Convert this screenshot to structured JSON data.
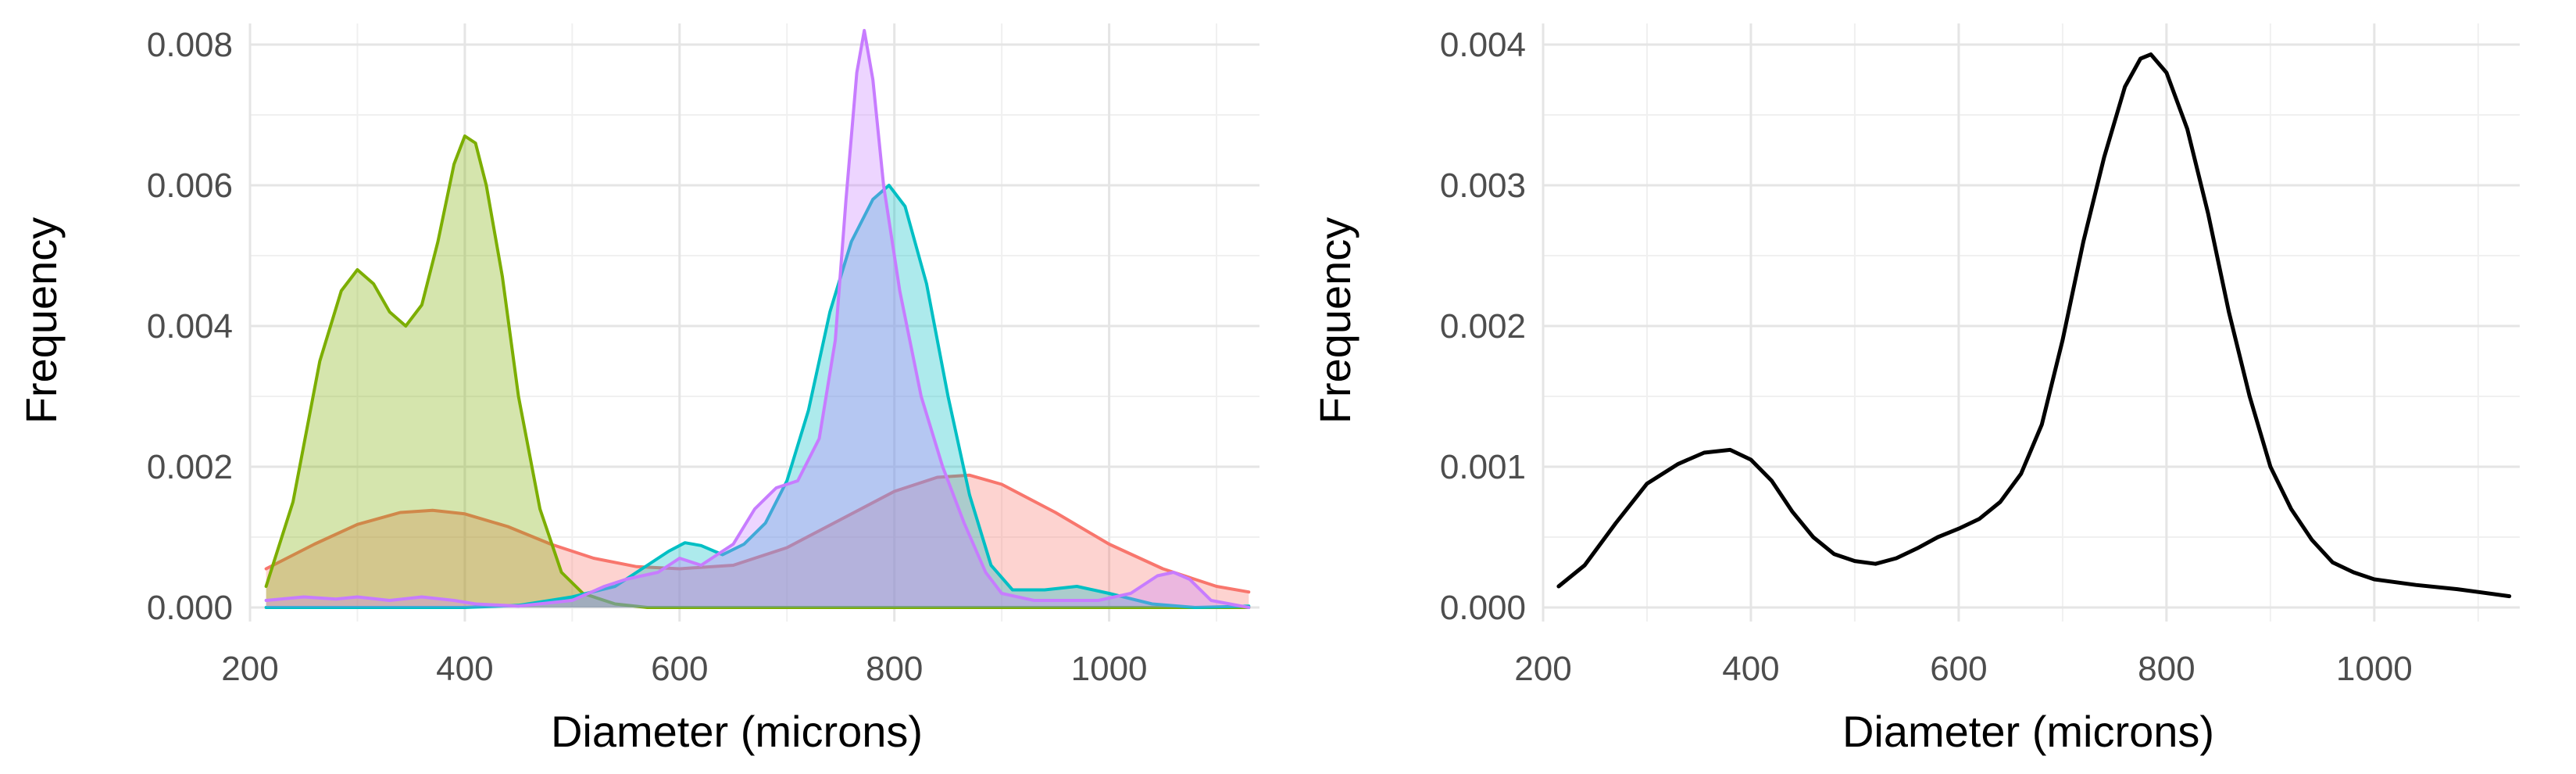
{
  "chart_data": [
    {
      "type": "area",
      "xlabel": "Diameter (microns)",
      "ylabel": "Frequency",
      "xlim": [
        200,
        1140
      ],
      "ylim": [
        -0.0002,
        0.0083
      ],
      "x_ticks": [
        200,
        400,
        600,
        800,
        1000
      ],
      "x_tick_labels": [
        "200",
        "400",
        "600",
        "800",
        "1000"
      ],
      "y_ticks": [
        0,
        0.002,
        0.004,
        0.006,
        0.008
      ],
      "y_tick_labels": [
        "0.000",
        "0.002",
        "0.004",
        "0.006",
        "0.008"
      ],
      "grid": true,
      "legend": "none",
      "series": [
        {
          "color": "#F8766D",
          "x": [
            215,
            260,
            300,
            340,
            370,
            400,
            440,
            480,
            520,
            560,
            600,
            650,
            700,
            750,
            800,
            840,
            870,
            900,
            950,
            1000,
            1050,
            1100,
            1130
          ],
          "y": [
            0.00055,
            0.0009,
            0.00118,
            0.00135,
            0.00138,
            0.00133,
            0.00115,
            0.0009,
            0.0007,
            0.00058,
            0.00055,
            0.0006,
            0.00085,
            0.00125,
            0.00165,
            0.00185,
            0.00188,
            0.00175,
            0.00135,
            0.0009,
            0.00055,
            0.0003,
            0.00022
          ]
        },
        {
          "color": "#7CAE00",
          "x": [
            215,
            240,
            265,
            285,
            300,
            315,
            330,
            345,
            360,
            375,
            390,
            400,
            410,
            420,
            435,
            450,
            470,
            490,
            510,
            540,
            570,
            620,
            700,
            800,
            900,
            1000,
            1130
          ],
          "y": [
            0.0003,
            0.0015,
            0.0035,
            0.0045,
            0.0048,
            0.0046,
            0.0042,
            0.004,
            0.0043,
            0.0052,
            0.0063,
            0.0067,
            0.0066,
            0.006,
            0.0047,
            0.003,
            0.0014,
            0.0005,
            0.0002,
            5e-05,
            0.0,
            0.0,
            0.0,
            0.0,
            0.0,
            0.0,
            0.0
          ]
        },
        {
          "color": "#00BFC4",
          "x": [
            215,
            300,
            400,
            450,
            500,
            540,
            570,
            590,
            605,
            620,
            640,
            660,
            680,
            700,
            720,
            740,
            760,
            780,
            795,
            810,
            830,
            850,
            870,
            890,
            910,
            940,
            970,
            1000,
            1040,
            1080,
            1130
          ],
          "y": [
            0.0,
            0.0,
            0.0,
            3e-05,
            0.00015,
            0.0003,
            0.0006,
            0.0008,
            0.00092,
            0.00088,
            0.00075,
            0.0009,
            0.0012,
            0.0018,
            0.0028,
            0.0042,
            0.0052,
            0.0058,
            0.006,
            0.0057,
            0.0046,
            0.003,
            0.0016,
            0.0006,
            0.00025,
            0.00025,
            0.0003,
            0.0002,
            5e-05,
            0.0,
            2e-05
          ]
        },
        {
          "color": "#C77CFF",
          "x": [
            215,
            250,
            280,
            300,
            330,
            360,
            390,
            410,
            450,
            500,
            530,
            550,
            580,
            600,
            620,
            650,
            670,
            690,
            710,
            730,
            745,
            755,
            765,
            772,
            780,
            790,
            805,
            825,
            845,
            865,
            885,
            900,
            930,
            960,
            990,
            1020,
            1045,
            1060,
            1075,
            1095,
            1130
          ],
          "y": [
            0.0001,
            0.00015,
            0.00012,
            0.00015,
            0.0001,
            0.00015,
            0.0001,
            5e-05,
            2e-05,
            0.0001,
            0.0003,
            0.0004,
            0.0005,
            0.0007,
            0.0006,
            0.0009,
            0.0014,
            0.0017,
            0.0018,
            0.0024,
            0.0038,
            0.0058,
            0.0076,
            0.0082,
            0.0075,
            0.006,
            0.0045,
            0.003,
            0.002,
            0.0012,
            0.0005,
            0.0002,
            0.0001,
            0.0001,
            0.0001,
            0.0002,
            0.00045,
            0.0005,
            0.0004,
            0.0001,
            0.0
          ]
        }
      ]
    },
    {
      "type": "line",
      "xlabel": "Diameter (microns)",
      "ylabel": "Frequency",
      "xlim": [
        200,
        1140
      ],
      "ylim": [
        -0.0001,
        0.00415
      ],
      "x_ticks": [
        200,
        400,
        600,
        800,
        1000
      ],
      "x_tick_labels": [
        "200",
        "400",
        "600",
        "800",
        "1000"
      ],
      "y_ticks": [
        0,
        0.001,
        0.002,
        0.003,
        0.004
      ],
      "y_tick_labels": [
        "0.000",
        "0.001",
        "0.002",
        "0.003",
        "0.004"
      ],
      "grid": true,
      "legend": "none",
      "series": [
        {
          "color": "#000000",
          "x": [
            215,
            240,
            270,
            300,
            330,
            355,
            380,
            400,
            420,
            440,
            460,
            480,
            500,
            520,
            540,
            560,
            580,
            600,
            620,
            640,
            660,
            680,
            700,
            720,
            740,
            760,
            775,
            785,
            800,
            820,
            840,
            860,
            880,
            900,
            920,
            940,
            960,
            980,
            1000,
            1040,
            1080,
            1130
          ],
          "y": [
            0.00015,
            0.0003,
            0.0006,
            0.00088,
            0.00102,
            0.0011,
            0.00112,
            0.00105,
            0.0009,
            0.00068,
            0.0005,
            0.00038,
            0.00033,
            0.00031,
            0.00035,
            0.00042,
            0.0005,
            0.00056,
            0.00063,
            0.00075,
            0.00095,
            0.0013,
            0.0019,
            0.0026,
            0.0032,
            0.0037,
            0.0039,
            0.00393,
            0.0038,
            0.0034,
            0.0028,
            0.0021,
            0.0015,
            0.001,
            0.0007,
            0.00048,
            0.00032,
            0.00025,
            0.0002,
            0.00016,
            0.00013,
            8e-05
          ]
        }
      ]
    }
  ]
}
